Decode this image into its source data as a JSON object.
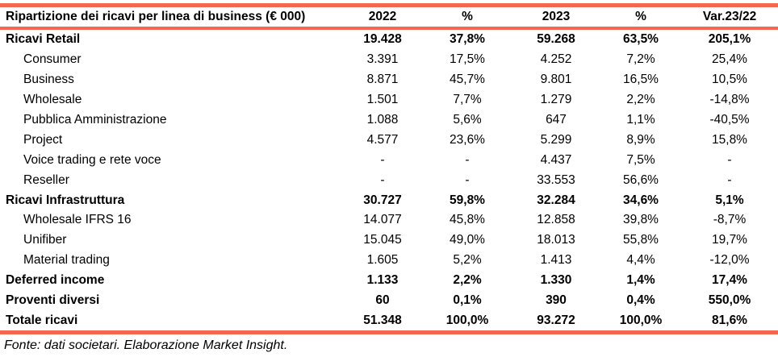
{
  "chart_data": {
    "type": "table",
    "title": "Ripartizione dei ricavi per linea di  business (€ 000)",
    "columns": [
      "2022",
      "%",
      "2023",
      "%",
      "Var.23/22"
    ],
    "rows": [
      {
        "label": "Ricavi Retail",
        "bold": true,
        "indent": false,
        "values": [
          "19.428",
          "37,8%",
          "59.268",
          "63,5%",
          "205,1%"
        ]
      },
      {
        "label": "Consumer",
        "bold": false,
        "indent": true,
        "values": [
          "3.391",
          "17,5%",
          "4.252",
          "7,2%",
          "25,4%"
        ]
      },
      {
        "label": "Business",
        "bold": false,
        "indent": true,
        "values": [
          "8.871",
          "45,7%",
          "9.801",
          "16,5%",
          "10,5%"
        ]
      },
      {
        "label": "Wholesale",
        "bold": false,
        "indent": true,
        "values": [
          "1.501",
          "7,7%",
          "1.279",
          "2,2%",
          "-14,8%"
        ]
      },
      {
        "label": "Pubblica Amministrazione",
        "bold": false,
        "indent": true,
        "values": [
          "1.088",
          "5,6%",
          "647",
          "1,1%",
          "-40,5%"
        ]
      },
      {
        "label": "Project",
        "bold": false,
        "indent": true,
        "values": [
          "4.577",
          "23,6%",
          "5.299",
          "8,9%",
          "15,8%"
        ]
      },
      {
        "label": "Voice trading e rete voce",
        "bold": false,
        "indent": true,
        "values": [
          "-",
          "-",
          "4.437",
          "7,5%",
          "-"
        ]
      },
      {
        "label": "Reseller",
        "bold": false,
        "indent": true,
        "values": [
          "-",
          "-",
          "33.553",
          "56,6%",
          "-"
        ]
      },
      {
        "label": "Ricavi Infrastruttura",
        "bold": true,
        "indent": false,
        "values": [
          "30.727",
          "59,8%",
          "32.284",
          "34,6%",
          "5,1%"
        ]
      },
      {
        "label": "Wholesale IFRS 16",
        "bold": false,
        "indent": true,
        "values": [
          "14.077",
          "45,8%",
          "12.858",
          "39,8%",
          "-8,7%"
        ]
      },
      {
        "label": "Unifiber",
        "bold": false,
        "indent": true,
        "values": [
          "15.045",
          "49,0%",
          "18.013",
          "55,8%",
          "19,7%"
        ]
      },
      {
        "label": "Material trading",
        "bold": false,
        "indent": true,
        "values": [
          "1.605",
          "5,2%",
          "1.413",
          "4,4%",
          "-12,0%"
        ]
      },
      {
        "label": "Deferred income",
        "bold": true,
        "indent": false,
        "values": [
          "1.133",
          "2,2%",
          "1.330",
          "1,4%",
          "17,4%"
        ]
      },
      {
        "label": "Proventi diversi",
        "bold": true,
        "indent": false,
        "values": [
          "60",
          "0,1%",
          "390",
          "0,4%",
          "550,0%"
        ]
      },
      {
        "label": "Totale ricavi",
        "bold": true,
        "indent": false,
        "values": [
          "51.348",
          "100,0%",
          "93.272",
          "100,0%",
          "81,6%"
        ]
      }
    ],
    "footer": "Fonte: dati societari. Elaborazione Market Insight.",
    "accent_color": "#F4664E"
  }
}
